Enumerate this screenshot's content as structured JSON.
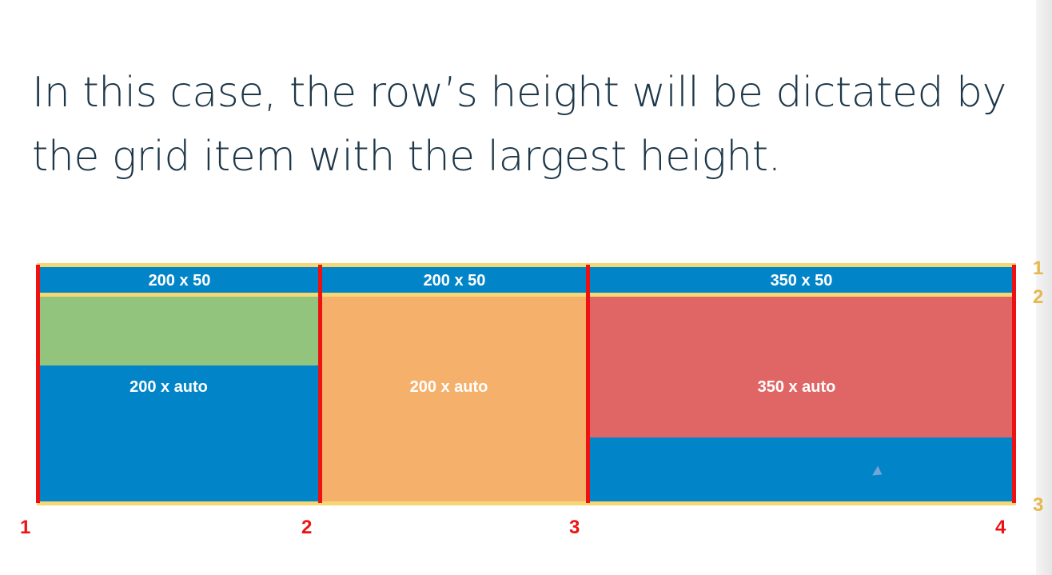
{
  "heading": {
    "line1": "In this case, the row’s height will be dictated by",
    "line2": "the grid item with the largest height."
  },
  "grid": {
    "row1_labels": [
      "200 x 50",
      "200 x 50",
      "350 x 50"
    ],
    "row2_labels": [
      "200 x auto",
      "200 x auto",
      "350 x auto"
    ]
  },
  "column_line_numbers": [
    "1",
    "2",
    "3",
    "4"
  ],
  "row_line_numbers": [
    "1",
    "2",
    "3"
  ],
  "colors": {
    "blue": "#0285c8",
    "green": "#93c47d",
    "orange": "#f5b16c",
    "red": "#e06666",
    "column_line": "#ee1111",
    "row_line": "#f7d774",
    "heading_text": "#1d3749"
  },
  "icons": {
    "cursor": "mouse-pointer-icon"
  }
}
